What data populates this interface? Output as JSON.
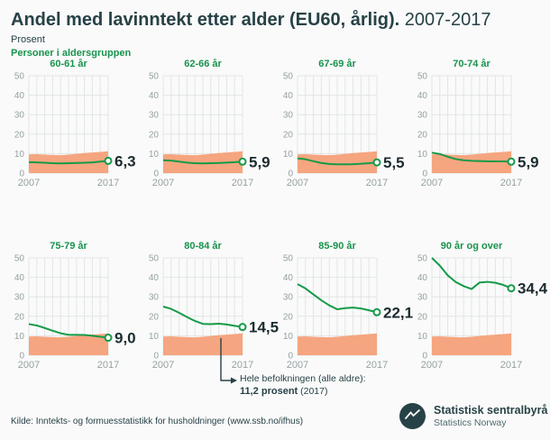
{
  "header": {
    "title_bold": "Andel med lavinntekt etter alder (EU60, årlig).",
    "title_period": "2007-2017",
    "unit_label": "Prosent",
    "series_label": "Personer i aldersgruppen"
  },
  "colors": {
    "line_green": "#169a49",
    "title_green": "#18934d",
    "band_orange": "#f5a57f",
    "grid": "#e2e5e5",
    "tick_text": "#95a1a1",
    "value_text": "#1c2b2f",
    "dark_teal": "#274247"
  },
  "chart_data": {
    "type": "line",
    "x": [
      2007,
      2008,
      2009,
      2010,
      2011,
      2012,
      2013,
      2014,
      2015,
      2016,
      2017
    ],
    "x_tick_labels": [
      "2007",
      "2017"
    ],
    "ylim": [
      0,
      50
    ],
    "y_ticks": [
      0,
      10,
      20,
      30,
      40,
      50
    ],
    "grid": true,
    "band_series": {
      "name": "Hele befolkningen (alle aldre)",
      "values": [
        9.6,
        9.7,
        9.5,
        9.3,
        9.2,
        9.5,
        9.9,
        10.3,
        10.6,
        10.9,
        11.2
      ]
    },
    "panels": [
      {
        "title": "60-61 år",
        "values": [
          5.6,
          5.5,
          5.3,
          5.1,
          5.0,
          5.1,
          5.2,
          5.3,
          5.5,
          5.9,
          6.3
        ],
        "end_label": "6,3"
      },
      {
        "title": "62-66 år",
        "values": [
          6.6,
          6.4,
          5.9,
          5.4,
          5.1,
          5.0,
          5.1,
          5.2,
          5.4,
          5.6,
          5.9
        ],
        "end_label": "5,9"
      },
      {
        "title": "67-69 år",
        "values": [
          7.6,
          7.1,
          6.1,
          5.2,
          4.7,
          4.5,
          4.5,
          4.6,
          4.8,
          5.1,
          5.5
        ],
        "end_label": "5,5"
      },
      {
        "title": "70-74 år",
        "values": [
          10.5,
          9.8,
          8.4,
          7.2,
          6.6,
          6.3,
          6.2,
          6.1,
          6.0,
          6.0,
          5.9
        ],
        "end_label": "5,9"
      },
      {
        "title": "75-79 år",
        "values": [
          16.0,
          15.3,
          14.0,
          12.6,
          11.3,
          10.5,
          10.5,
          10.4,
          10.0,
          9.5,
          9.0
        ],
        "end_label": "9,0"
      },
      {
        "title": "80-84 år",
        "values": [
          25.0,
          23.8,
          21.8,
          19.6,
          17.6,
          16.1,
          16.0,
          16.2,
          15.8,
          15.1,
          14.5
        ],
        "end_label": "14,5"
      },
      {
        "title": "85-90 år",
        "values": [
          36.5,
          34.3,
          31.2,
          28.2,
          25.6,
          23.6,
          24.2,
          24.5,
          24.0,
          23.1,
          22.1
        ],
        "end_label": "22,1"
      },
      {
        "title": "90 år og over",
        "values": [
          50.0,
          46.0,
          41.0,
          37.6,
          35.5,
          34.0,
          37.3,
          37.7,
          37.2,
          36.1,
          34.4
        ],
        "end_label": "34,4"
      }
    ]
  },
  "annotation": {
    "line1": "Hele befolkningen (alle aldre):",
    "line2_bold": "11,2 prosent",
    "line2_rest": "(2017)"
  },
  "footer": {
    "source": "Kilde: Inntekts- og formuesstatistikk for husholdninger (www.ssb.no/ifhus)",
    "org_name": "Statistisk sentralbyrå",
    "org_name_en": "Statistics Norway"
  }
}
